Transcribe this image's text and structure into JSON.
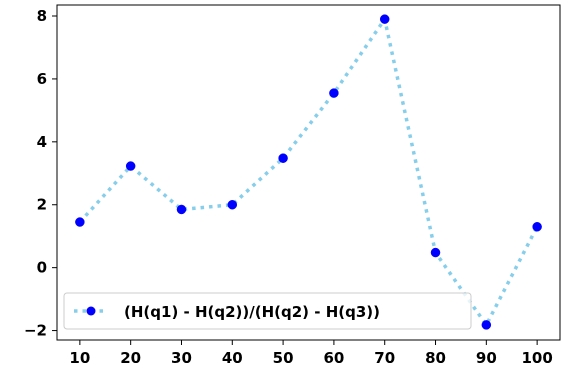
{
  "chart_data": {
    "type": "line",
    "title": "",
    "xlabel": "",
    "ylabel": "",
    "x": [
      10,
      20,
      30,
      40,
      50,
      60,
      70,
      80,
      90,
      100
    ],
    "series": [
      {
        "name": "(H(q1) - H(q2))/(H(q2) - H(q3))",
        "values": [
          1.45,
          3.23,
          1.85,
          2.0,
          3.48,
          5.55,
          7.9,
          0.48,
          -1.82,
          1.3
        ],
        "line_color": "#87ceeb",
        "marker_color": "#0000ff",
        "line_style": "dotted",
        "marker": "circle"
      }
    ],
    "xticks": [
      10,
      20,
      30,
      40,
      50,
      60,
      70,
      80,
      90,
      100
    ],
    "yticks": [
      -2,
      0,
      2,
      4,
      6,
      8
    ],
    "ytick_labels": [
      "−2",
      "0",
      "2",
      "4",
      "6",
      "8"
    ],
    "xlim": [
      5.5,
      104.5
    ],
    "ylim": [
      -2.3,
      8.35
    ],
    "grid": false,
    "legend_position": "lower-left"
  }
}
